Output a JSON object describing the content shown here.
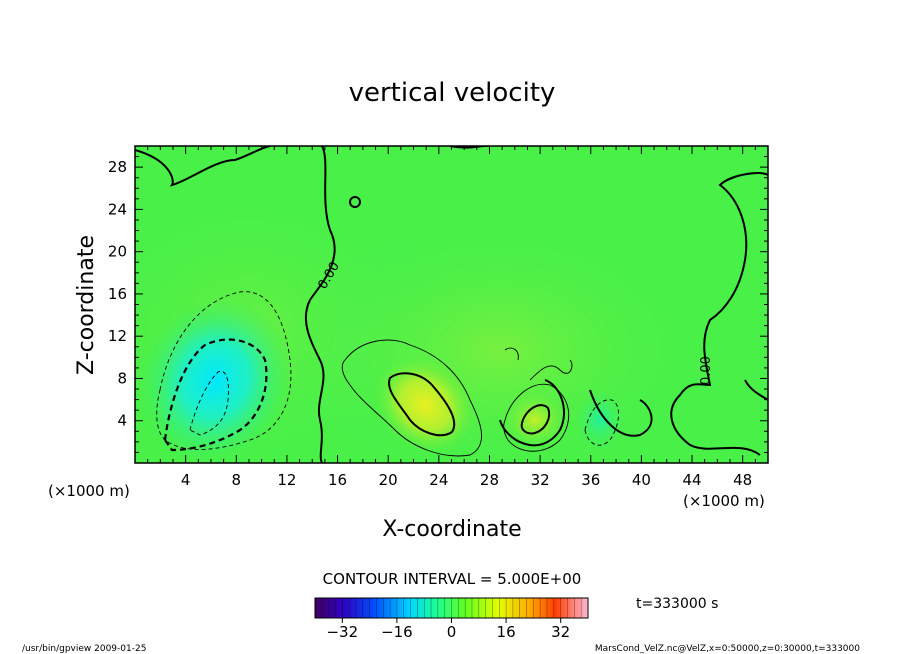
{
  "chart_data": {
    "type": "heatmap",
    "title": "vertical velocity",
    "xlabel": "X-coordinate",
    "ylabel": "Z-coordinate",
    "x_unit": "(×1000 m)",
    "y_unit": "(×1000 m)",
    "xlim": [
      0,
      50
    ],
    "ylim": [
      0,
      30
    ],
    "x_ticks": [
      4,
      8,
      12,
      16,
      20,
      24,
      28,
      32,
      36,
      40,
      44,
      48
    ],
    "y_ticks": [
      4,
      8,
      12,
      16,
      20,
      24,
      28
    ],
    "contour_interval_label": "CONTOUR INTERVAL = 5.000E+00",
    "contour_labels": [
      "0.00",
      "0.00"
    ],
    "time_label": "t=333000 s",
    "colorbar": {
      "range": [
        -40,
        40
      ],
      "ticks": [
        -32,
        -16,
        0,
        16,
        32
      ],
      "colors": [
        "#5a0090",
        "#0000ff",
        "#00e0ff",
        "#30ff20",
        "#ffff00",
        "#ff7000",
        "#ffa0c0"
      ]
    },
    "features": [
      {
        "kind": "downdraft",
        "x": 6.5,
        "z": 6.5,
        "min_value": -15
      },
      {
        "kind": "updraft",
        "x": 22,
        "z": 6,
        "max_value": 12
      },
      {
        "kind": "updraft",
        "x": 31,
        "z": 4,
        "max_value": 8
      },
      {
        "kind": "downdraft",
        "x": 36,
        "z": 3.5,
        "min_value": -6
      }
    ]
  },
  "footer": {
    "left": "/usr/bin/gpview   2009-01-25",
    "right": "MarsCond_VelZ.nc@VelZ,x=0:50000,z=0:30000,t=333000"
  }
}
